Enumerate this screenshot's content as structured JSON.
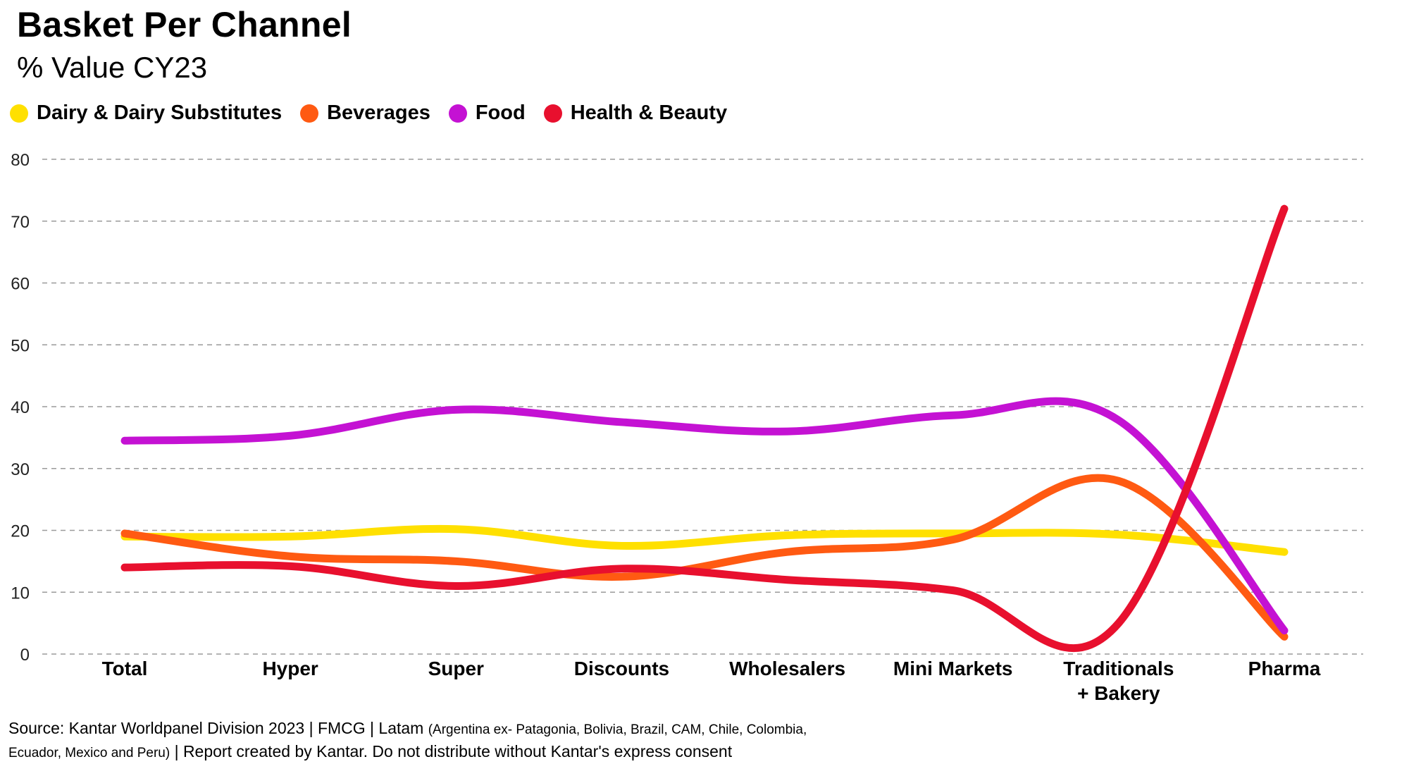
{
  "chart_data": {
    "type": "line",
    "title": "Basket Per Channel",
    "subtitle": "% Value CY23",
    "categories": [
      "Total",
      "Hyper",
      "Super",
      "Discounts",
      "Wholesalers",
      "Mini Markets",
      "Traditionals\n+ Bakery",
      "Pharma"
    ],
    "ylim": [
      0,
      80
    ],
    "yticks": [
      0,
      10,
      20,
      30,
      40,
      50,
      60,
      70,
      80
    ],
    "grid": true,
    "legend_position": "top-left",
    "series": [
      {
        "name": "Dairy & Dairy Substitutes",
        "color": "#FFE000",
        "values": [
          19,
          19,
          20.2,
          17.5,
          19.2,
          19.5,
          19.3,
          16.5
        ]
      },
      {
        "name": "Beverages",
        "color": "#FF5A12",
        "values": [
          19.5,
          15.8,
          15,
          12.5,
          16.5,
          18.5,
          28,
          2.8
        ]
      },
      {
        "name": "Food",
        "color": "#C412D3",
        "values": [
          34.5,
          35.3,
          39.5,
          37.5,
          36,
          38.6,
          37.8,
          3.8
        ]
      },
      {
        "name": "Health & Beauty",
        "color": "#E8102E",
        "values": [
          14,
          14.2,
          11,
          13.8,
          12,
          10.3,
          5,
          72
        ]
      }
    ]
  },
  "source": {
    "main": "Source: Kantar Worldpanel Division 2023 | FMCG | Latam",
    "detail1": "(Argentina ex- Patagonia, Bolivia, Brazil, CAM, Chile, Colombia,",
    "detail2": "Ecuador, Mexico and Peru)",
    "tail": "| Report created by Kantar. Do not distribute without Kantar's express consent"
  }
}
